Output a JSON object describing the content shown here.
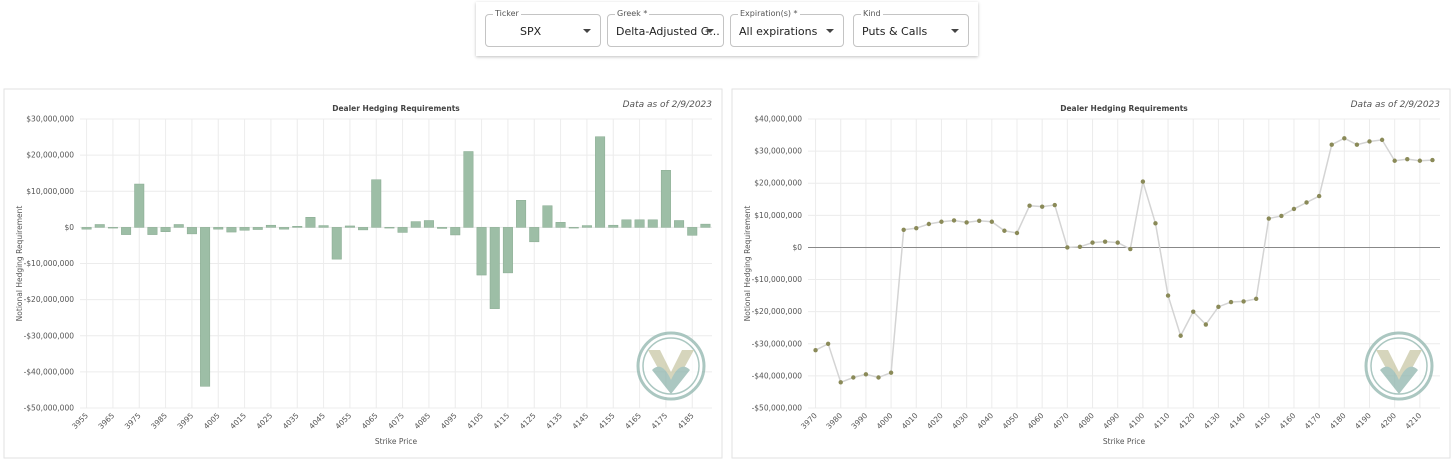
{
  "toolbar": {
    "fields": [
      {
        "label": "Ticker",
        "value": "SPX"
      },
      {
        "label": "Greek *",
        "value": "Delta-Adjusted G..."
      },
      {
        "label": "Expiration(s) *",
        "value": "All expirations"
      },
      {
        "label": "Kind",
        "value": "Puts & Calls"
      }
    ]
  },
  "chart_data": [
    {
      "type": "bar",
      "title": "Dealer Hedging Requirements",
      "note": "Data as of 2/9/2023",
      "x_label": "Strike Price",
      "y_label": "Notional Hedging Requirement",
      "categories": [
        "3955",
        null,
        "3965",
        null,
        "3975",
        null,
        "3985",
        null,
        "3995",
        null,
        "4005",
        null,
        "4015",
        null,
        "4025",
        null,
        "4035",
        null,
        "4045",
        null,
        "4055",
        null,
        "4065",
        null,
        "4075",
        null,
        "4085",
        null,
        "4095",
        null,
        "4105",
        null,
        "4115",
        null,
        "4125",
        null,
        "4135",
        null,
        "4145",
        null,
        "4155",
        null,
        "4165",
        null,
        "4175",
        null,
        "4185",
        null
      ],
      "values": [
        -500000,
        800000,
        -200000,
        -2000000,
        12000000,
        -2000000,
        -1200000,
        800000,
        -1800000,
        -44000000,
        -500000,
        -1300000,
        -800000,
        -600000,
        600000,
        -500000,
        300000,
        2800000,
        500000,
        -8800000,
        400000,
        -700000,
        13200000,
        -200000,
        -1400000,
        1600000,
        1900000,
        -300000,
        -2100000,
        21000000,
        -13200000,
        -22500000,
        -12600000,
        7500000,
        -4000000,
        6000000,
        1400000,
        -200000,
        500000,
        25100000,
        600000,
        2100000,
        2100000,
        2100000,
        15800000,
        1900000,
        -2200000,
        900000
      ],
      "color": "#9dbea6",
      "grid": true,
      "ylim": [
        -50000000,
        30000000
      ],
      "yticks": [
        {
          "value": 30000000,
          "label": "$30,000,000"
        },
        {
          "value": 20000000,
          "label": "$20,000,000"
        },
        {
          "value": 10000000,
          "label": "$10,000,000"
        },
        {
          "value": 0,
          "label": "$0"
        },
        {
          "value": -10000000,
          "label": "-$10,000,000"
        },
        {
          "value": -20000000,
          "label": "-$20,000,000"
        },
        {
          "value": -30000000,
          "label": "-$30,000,000"
        },
        {
          "value": -40000000,
          "label": "-$40,000,000"
        },
        {
          "value": -50000000,
          "label": "-$50,000,000"
        }
      ]
    },
    {
      "type": "line",
      "title": "Dealer Hedging Requirements",
      "note": "Data as of 2/9/2023",
      "x_label": "Strike Price",
      "y_label": "Notional Hedging Requirement",
      "x": [
        3970,
        3975,
        3980,
        3985,
        3990,
        3995,
        4000,
        4005,
        4010,
        4015,
        4020,
        4025,
        4030,
        4035,
        4040,
        4045,
        4050,
        4055,
        4060,
        4065,
        4070,
        4075,
        4080,
        4085,
        4090,
        4095,
        4100,
        4105,
        4110,
        4115,
        4120,
        4125,
        4130,
        4135,
        4140,
        4145,
        4150,
        4155,
        4160,
        4165,
        4170,
        4175,
        4180,
        4185,
        4190,
        4195,
        4200,
        4205,
        4210,
        4215
      ],
      "values": [
        -32000000,
        -30000000,
        -42000000,
        -40500000,
        -39500000,
        -40500000,
        -39000000,
        5500000,
        6000000,
        7300000,
        8000000,
        8400000,
        7800000,
        8300000,
        8000000,
        5200000,
        4500000,
        13000000,
        12700000,
        13200000,
        0,
        200000,
        1500000,
        1800000,
        1500000,
        -500000,
        20500000,
        7500000,
        -15000000,
        -27500000,
        -20000000,
        -24000000,
        -18500000,
        -17000000,
        -16800000,
        -16000000,
        9000000,
        9800000,
        12000000,
        14000000,
        16000000,
        32000000,
        34000000,
        32000000,
        33000000,
        33500000,
        27000000,
        27500000,
        27000000,
        27200000
      ],
      "color": "#8a8a58",
      "line_color": "#d4d4d4",
      "grid": true,
      "zero_line": true,
      "xlim": [
        3967,
        4218
      ],
      "xticks": [
        3970,
        3980,
        3990,
        4000,
        4010,
        4020,
        4030,
        4040,
        4050,
        4060,
        4070,
        4080,
        4090,
        4100,
        4110,
        4120,
        4130,
        4140,
        4150,
        4160,
        4170,
        4180,
        4190,
        4200,
        4210
      ],
      "ylim": [
        -50000000,
        40000000
      ],
      "yticks": [
        {
          "value": 40000000,
          "label": "$40,000,000"
        },
        {
          "value": 30000000,
          "label": "$30,000,000"
        },
        {
          "value": 20000000,
          "label": "$20,000,000"
        },
        {
          "value": 10000000,
          "label": "$10,000,000"
        },
        {
          "value": 0,
          "label": "$0"
        },
        {
          "value": -10000000,
          "label": "-$10,000,000"
        },
        {
          "value": -20000000,
          "label": "-$20,000,000"
        },
        {
          "value": -30000000,
          "label": "-$30,000,000"
        },
        {
          "value": -40000000,
          "label": "-$40,000,000"
        },
        {
          "value": -50000000,
          "label": "-$50,000,000"
        }
      ]
    }
  ]
}
